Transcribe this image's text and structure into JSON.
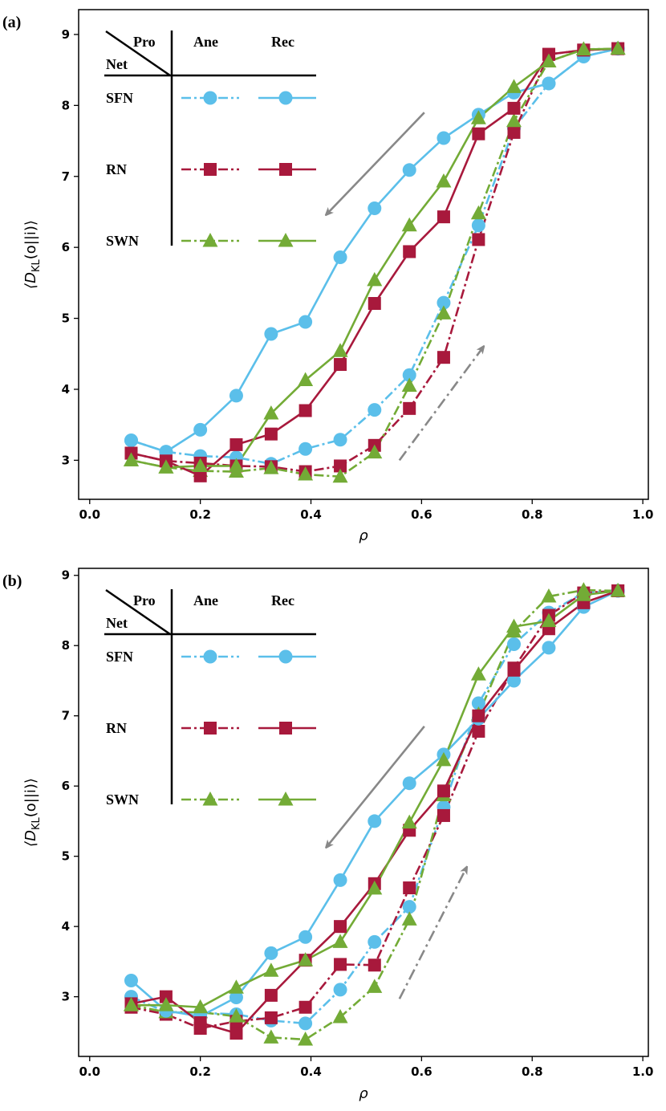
{
  "colors": {
    "SFN": "#5bbfea",
    "RN": "#a8193c",
    "SWN": "#73ab36",
    "arrow": "#888888"
  },
  "legend": {
    "corner_top": "Pro",
    "corner_bottom": "Net",
    "col_ane": "Ane",
    "col_rec": "Rec",
    "rows": [
      {
        "net": "SFN",
        "marker": "circle"
      },
      {
        "net": "RN",
        "marker": "square"
      },
      {
        "net": "SWN",
        "marker": "triangle"
      }
    ]
  },
  "chart_data": [
    {
      "panel": "(a)",
      "type": "line",
      "xlabel": "ρ",
      "ylabel": "⟨D_KL(o||i)⟩",
      "xlim": [
        -0.02,
        1.01
      ],
      "ylim": [
        2.45,
        9.35
      ],
      "xticks": [
        "0.0",
        "0.2",
        "0.4",
        "0.6",
        "0.8",
        "1.0"
      ],
      "yticks": [
        "3",
        "4",
        "5",
        "6",
        "7",
        "8",
        "9"
      ],
      "x": [
        0.075,
        0.138,
        0.2,
        0.265,
        0.328,
        0.39,
        0.453,
        0.515,
        0.578,
        0.64,
        0.703,
        0.767,
        0.83,
        0.893,
        0.955
      ],
      "series": [
        {
          "name": "SFN Ane",
          "net": "SFN",
          "process": "Ane",
          "values": [
            3.28,
            3.12,
            3.06,
            3.04,
            2.95,
            3.16,
            3.29,
            3.71,
            4.2,
            5.22,
            6.31,
            7.68,
            8.31,
            8.69,
            8.8
          ]
        },
        {
          "name": "RN Ane",
          "net": "RN",
          "process": "Ane",
          "values": [
            3.1,
            2.99,
            2.96,
            2.92,
            2.91,
            2.84,
            2.92,
            3.21,
            3.73,
            4.45,
            6.11,
            7.62,
            8.72,
            8.78,
            8.8
          ]
        },
        {
          "name": "SWN Ane",
          "net": "SWN",
          "process": "Ane",
          "values": [
            3.0,
            2.9,
            2.85,
            2.84,
            2.89,
            2.8,
            2.77,
            3.11,
            4.05,
            5.07,
            6.48,
            7.78,
            8.62,
            8.79,
            8.8
          ]
        },
        {
          "name": "SFN Rec",
          "net": "SFN",
          "process": "Rec",
          "values": [
            3.28,
            3.12,
            3.43,
            3.91,
            4.78,
            4.95,
            5.86,
            6.55,
            7.09,
            7.54,
            7.87,
            8.18,
            8.31,
            8.69,
            8.8
          ]
        },
        {
          "name": "RN Rec",
          "net": "RN",
          "process": "Rec",
          "values": [
            3.1,
            2.99,
            2.78,
            3.22,
            3.37,
            3.7,
            4.35,
            5.21,
            5.94,
            6.43,
            7.6,
            7.96,
            8.72,
            8.78,
            8.8
          ]
        },
        {
          "name": "SWN Rec",
          "net": "SWN",
          "process": "Rec",
          "values": [
            3.0,
            2.9,
            2.92,
            2.92,
            3.66,
            4.13,
            4.54,
            5.54,
            6.31,
            6.93,
            7.82,
            8.26,
            8.62,
            8.79,
            8.8
          ]
        }
      ],
      "arrows": [
        {
          "direction": "down-left",
          "from": [
            0.605,
            7.9
          ],
          "to": [
            0.43,
            6.48
          ],
          "style": "solid"
        },
        {
          "direction": "up-right",
          "from": [
            0.56,
            3.0
          ],
          "to": [
            0.71,
            4.58
          ],
          "style": "dash-dot"
        }
      ]
    },
    {
      "panel": "(b)",
      "type": "line",
      "xlabel": "ρ",
      "ylabel": "⟨D_KL(o||i)⟩",
      "xlim": [
        -0.02,
        1.01
      ],
      "ylim": [
        2.15,
        9.1
      ],
      "xticks": [
        "0.0",
        "0.2",
        "0.4",
        "0.6",
        "0.8",
        "1.0"
      ],
      "yticks": [
        "3",
        "4",
        "5",
        "6",
        "7",
        "8",
        "9"
      ],
      "x": [
        0.075,
        0.138,
        0.2,
        0.265,
        0.328,
        0.39,
        0.453,
        0.515,
        0.578,
        0.64,
        0.703,
        0.767,
        0.83,
        0.893,
        0.955
      ],
      "series": [
        {
          "name": "SFN Ane",
          "net": "SFN",
          "process": "Ane",
          "values": [
            3.0,
            2.78,
            2.77,
            2.75,
            2.66,
            2.62,
            3.1,
            3.78,
            4.28,
            5.7,
            7.18,
            8.02,
            8.47,
            8.75,
            8.78
          ]
        },
        {
          "name": "RN Ane",
          "net": "RN",
          "process": "Ane",
          "values": [
            2.85,
            2.75,
            2.55,
            2.65,
            2.7,
            2.85,
            3.46,
            3.45,
            4.55,
            5.58,
            6.78,
            7.68,
            8.43,
            8.75,
            8.78
          ]
        },
        {
          "name": "SWN Ane",
          "net": "SWN",
          "process": "Ane",
          "values": [
            2.88,
            2.78,
            2.78,
            2.72,
            2.42,
            2.39,
            2.71,
            3.14,
            4.1,
            5.87,
            7.02,
            8.2,
            8.7,
            8.79,
            8.78
          ]
        },
        {
          "name": "SFN Rec",
          "net": "SFN",
          "process": "Rec",
          "values": [
            3.23,
            2.8,
            2.72,
            2.99,
            3.62,
            3.85,
            4.66,
            5.5,
            6.04,
            6.45,
            6.96,
            7.5,
            7.97,
            8.55,
            8.78
          ]
        },
        {
          "name": "RN Rec",
          "net": "RN",
          "process": "Rec",
          "values": [
            2.9,
            3.0,
            2.63,
            2.48,
            3.02,
            3.52,
            4.0,
            4.61,
            5.37,
            5.93,
            7.0,
            7.65,
            8.24,
            8.61,
            8.78
          ]
        },
        {
          "name": "SWN Rec",
          "net": "SWN",
          "process": "Rec",
          "values": [
            2.88,
            2.88,
            2.85,
            3.13,
            3.37,
            3.52,
            3.78,
            4.54,
            5.48,
            6.37,
            7.59,
            8.27,
            8.35,
            8.72,
            8.78
          ]
        }
      ],
      "arrows": [
        {
          "direction": "down-left",
          "from": [
            0.605,
            6.85
          ],
          "to": [
            0.43,
            5.15
          ],
          "style": "solid"
        },
        {
          "direction": "up-right",
          "from": [
            0.56,
            2.97
          ],
          "to": [
            0.68,
            4.82
          ],
          "style": "dash-dot"
        }
      ]
    }
  ]
}
